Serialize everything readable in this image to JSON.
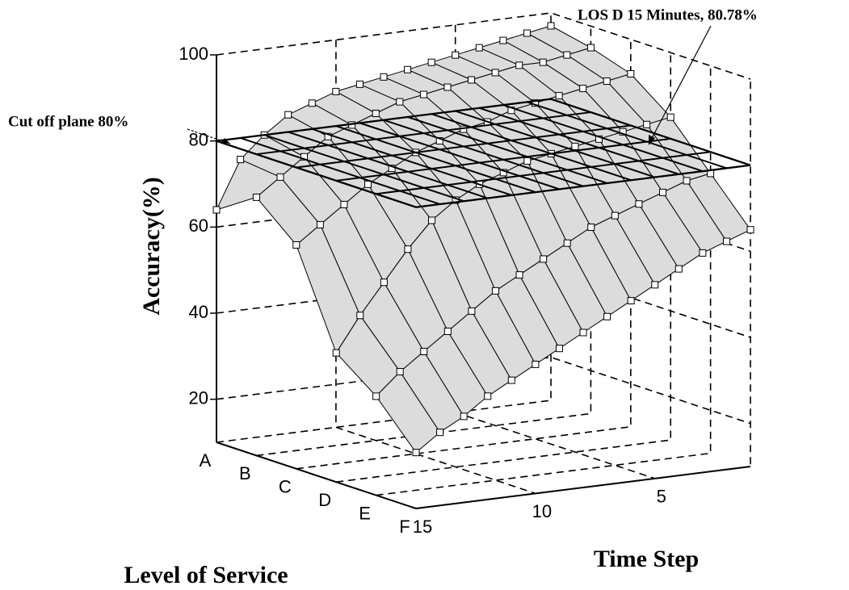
{
  "chart_data": {
    "type": "surface3d",
    "z_label": "Accuracy(%)",
    "y_label": "Level of Service",
    "x_label": "Time Step",
    "categories": [
      "A",
      "B",
      "C",
      "D",
      "E",
      "F"
    ],
    "x": [
      1,
      2,
      3,
      4,
      5,
      6,
      7,
      8,
      9,
      10,
      11,
      12,
      13,
      14,
      15
    ],
    "xlim": [
      1,
      15
    ],
    "xticks": [
      5,
      10,
      15
    ],
    "zlim": [
      10,
      100
    ],
    "zticks": [
      20,
      40,
      60,
      80,
      100
    ],
    "surface_color": "#dcdcdc",
    "series": [
      {
        "values": [
          97,
          96,
          95,
          94,
          93,
          92,
          91,
          90,
          89,
          88,
          86,
          84,
          80,
          75,
          64
        ]
      },
      {
        "values": [
          95,
          94,
          93,
          93,
          92,
          91,
          90,
          89,
          88,
          86,
          84,
          82,
          78,
          74,
          70
        ]
      },
      {
        "values": [
          92,
          91,
          90,
          89,
          88,
          87,
          85,
          84,
          82,
          80,
          77,
          74,
          70,
          66,
          62
        ]
      },
      {
        "values": [
          85,
          84,
          83,
          82,
          81,
          80,
          79,
          77,
          75,
          72,
          68,
          62,
          55,
          48,
          40
        ]
      },
      {
        "values": [
          75,
          74,
          72,
          70,
          68,
          66,
          63,
          60,
          57,
          54,
          50,
          46,
          42,
          38,
          33
        ]
      },
      {
        "values": [
          65,
          63,
          61,
          58,
          55,
          52,
          49,
          46,
          43,
          40,
          37,
          34,
          30,
          27,
          23
        ]
      }
    ],
    "cutoff_plane": 80,
    "annotations": [
      "Cut off plane 80%",
      "LOS D 15 Minutes, 80.78%"
    ]
  }
}
